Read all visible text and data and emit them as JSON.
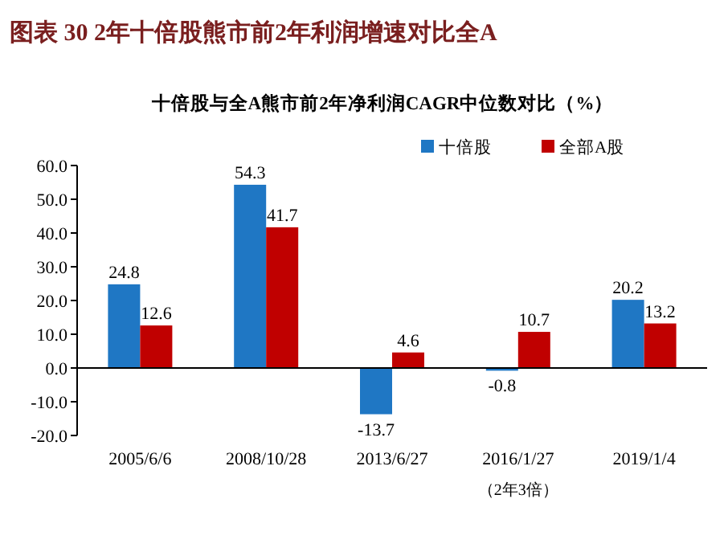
{
  "chart_data": {
    "type": "bar",
    "title": "图表 30   2年十倍股熊市前2年利润增速对比全A",
    "subtitle": "十倍股与全A熊市前2年净利润CAGR中位数对比（%）",
    "categories": [
      "2005/6/6",
      "2008/10/28",
      "2013/6/27",
      "2016/1/27",
      "2019/1/4"
    ],
    "series": [
      {
        "name": "十倍股",
        "color": "#1f77c4",
        "values": [
          24.8,
          54.3,
          -13.7,
          -0.8,
          20.2
        ]
      },
      {
        "name": "全部A股",
        "color": "#c00000",
        "values": [
          12.6,
          41.7,
          4.6,
          10.7,
          13.2
        ]
      }
    ],
    "ylim": [
      -20,
      60
    ],
    "yticks": [
      {
        "value": -20,
        "label": "-20.0"
      },
      {
        "value": -10,
        "label": "-10.0"
      },
      {
        "value": 0,
        "label": "0.0"
      },
      {
        "value": 10,
        "label": "10.0"
      },
      {
        "value": 20,
        "label": "20.0"
      },
      {
        "value": 30,
        "label": "30.0"
      },
      {
        "value": 40,
        "label": "40.0"
      },
      {
        "value": 50,
        "label": "50.0"
      },
      {
        "value": 60,
        "label": "60.0"
      }
    ],
    "data_labels": true,
    "legend": "top right",
    "annotations": [
      "（2年3倍）"
    ]
  }
}
